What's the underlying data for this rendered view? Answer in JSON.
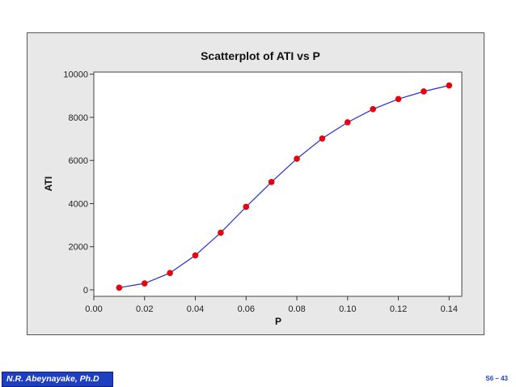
{
  "colors": {
    "frame_background": "#e8e8e8",
    "plot_background": "#ffffff",
    "series_line": "#2a2ad0",
    "series_marker": "#e8000b",
    "footer_badge": "#1f3fc2"
  },
  "chart_data": {
    "type": "scatter",
    "title": "Scatterplot of ATI vs P",
    "xlabel": "P",
    "ylabel": "ATI",
    "xlim": [
      0.0,
      0.145
    ],
    "ylim": [
      -300,
      10100
    ],
    "x_ticks": [
      0.0,
      0.02,
      0.04,
      0.06,
      0.08,
      0.1,
      0.12,
      0.14
    ],
    "x_tick_labels": [
      "0.00",
      "0.02",
      "0.04",
      "0.06",
      "0.08",
      "0.10",
      "0.12",
      "0.14"
    ],
    "y_ticks": [
      0,
      2000,
      4000,
      6000,
      8000,
      10000
    ],
    "y_tick_labels": [
      "0",
      "2000",
      "4000",
      "6000",
      "8000",
      "10000"
    ],
    "grid": false,
    "connected": true,
    "series": [
      {
        "x": [
          0.01,
          0.02,
          0.03,
          0.04,
          0.05,
          0.06,
          0.07,
          0.08,
          0.09,
          0.1,
          0.11,
          0.12,
          0.13,
          0.14
        ],
        "y": [
          100,
          300,
          780,
          1600,
          2650,
          3850,
          5000,
          6080,
          7020,
          7770,
          8380,
          8850,
          9200,
          9480
        ]
      }
    ]
  },
  "footer": {
    "author": "N.R. Abeynayake, Ph.D",
    "slide_number": "S6 – 43"
  }
}
